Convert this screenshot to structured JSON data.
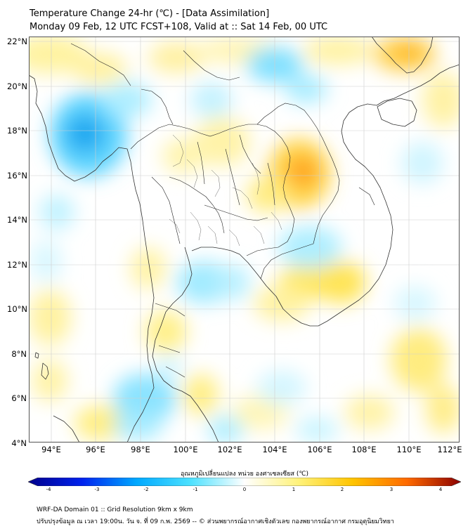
{
  "header": {
    "title_line1": "Temperature Change 24-hr (℃) - [Data Assimilation]",
    "title_line2": "Monday 09 Feb, 12 UTC FCST+108, Valid at :: Sat 14 Feb, 00 UTC"
  },
  "axes": {
    "lat_labels": [
      "22°N",
      "20°N",
      "18°N",
      "16°N",
      "14°N",
      "12°N",
      "10°N",
      "8°N",
      "6°N",
      "4°N"
    ],
    "lon_labels": [
      "94°E",
      "96°E",
      "98°E",
      "100°E",
      "102°E",
      "104°E",
      "106°E",
      "108°E",
      "110°E",
      "112°E"
    ]
  },
  "colorbar": {
    "label": "อุณหภูมิเปลี่ยนแปลง หน่วย องศาเซลเซียส (℃)",
    "ticks": [
      "-4",
      "-3",
      "-2",
      "-1",
      "0",
      "1",
      "2",
      "3",
      "4"
    ],
    "colors": [
      "#00008b",
      "#0022ee",
      "#00a8ff",
      "#4ce1ff",
      "#ffffff",
      "#fff27a",
      "#ffc400",
      "#ff6a00",
      "#8b0000"
    ]
  },
  "footer": {
    "line1": "WRF-DA Domain 01 :: Grid Resolution 9km x 9km",
    "line2": "ปรับปรุงข้อมูล ณ เวลา 19:00น. วัน จ. ที่ 09 ก.พ. 2569 -- © ส่วนพยากรณ์อากาศเชิงตัวเลข กองพยากรณ์อากาศ กรมอุตุนิยมวิทยา"
  }
}
